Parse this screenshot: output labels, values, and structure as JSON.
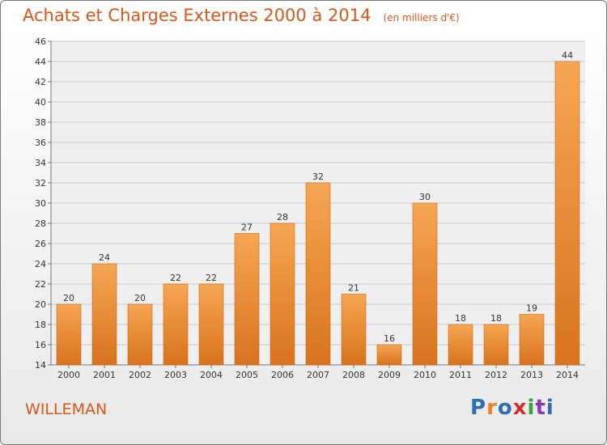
{
  "header": {
    "title": "Achats et Charges Externes 2000 à 2014",
    "unit": "(en milliers d'€)"
  },
  "footer": {
    "commune": "WILLEMAN",
    "logo_text": "Proxiti",
    "logo_colors": [
      "#2e6db4",
      "#e8831f",
      "#2e6db4",
      "#d42c2c",
      "#3aa33a",
      "#8a3ab5",
      "#2e6db4"
    ]
  },
  "colors": {
    "bar_top": "#f6a652",
    "bar_bottom": "#d8731f",
    "bar_edge": "#c96a1a",
    "accent": "#d4581a",
    "grid": "#c9c9c9",
    "axis": "#777777",
    "plot_bg": "#efefef"
  },
  "chart_data": {
    "type": "bar",
    "title": "Achats et Charges Externes 2000 à 2014",
    "subtitle": "(en milliers d'€)",
    "categories": [
      "2000",
      "2001",
      "2002",
      "2003",
      "2004",
      "2005",
      "2006",
      "2007",
      "2008",
      "2009",
      "2010",
      "2011",
      "2012",
      "2013",
      "2014"
    ],
    "values": [
      20,
      24,
      20,
      22,
      22,
      27,
      28,
      32,
      21,
      16,
      30,
      18,
      18,
      19,
      44
    ],
    "ylim": [
      14,
      46
    ],
    "yticks": [
      14,
      16,
      18,
      20,
      22,
      24,
      26,
      28,
      30,
      32,
      34,
      36,
      38,
      40,
      42,
      44,
      46
    ],
    "xlabel": "",
    "ylabel": "",
    "grid": true,
    "data_labels": true
  }
}
